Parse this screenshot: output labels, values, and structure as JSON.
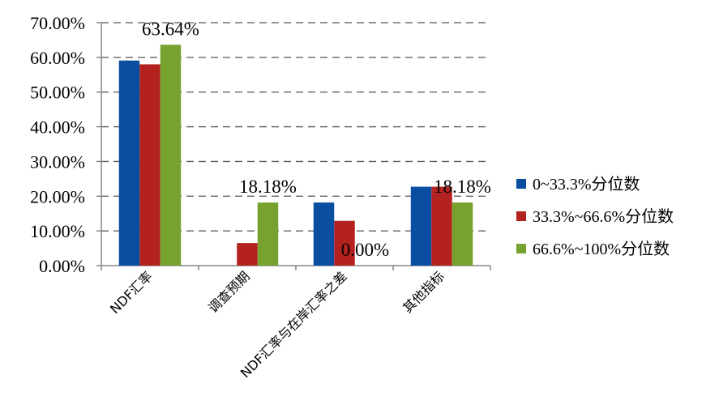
{
  "chart_data": {
    "type": "bar",
    "categories": [
      "NDF汇率",
      "调查预期",
      "NDF汇率与在岸汇率之差",
      "其他指标"
    ],
    "series": [
      {
        "name": "0~33.3%分位数",
        "color": "#0a4ea2",
        "values": [
          59.09,
          0,
          18.18,
          22.73
        ]
      },
      {
        "name": "33.3%~66.6%分位数",
        "color": "#b3221f",
        "values": [
          58.0,
          6.5,
          12.9,
          22.73
        ]
      },
      {
        "name": "66.6%~100%分位数",
        "color": "#78a22f",
        "values": [
          63.64,
          18.18,
          0.0,
          18.18
        ]
      }
    ],
    "data_labels": [
      {
        "text": "63.64%",
        "category": 0,
        "series": 2
      },
      {
        "text": "18.18%",
        "category": 1,
        "series": 2
      },
      {
        "text": "0.00%",
        "category": 2,
        "series": 2
      },
      {
        "text": "18.18%",
        "category": 3,
        "series": 2
      }
    ],
    "yticks": [
      "0.00%",
      "10.00%",
      "20.00%",
      "30.00%",
      "40.00%",
      "50.00%",
      "60.00%",
      "70.00%"
    ],
    "ylim": [
      0,
      70
    ],
    "grid": true,
    "legend_position": "right",
    "title": "",
    "xlabel": "",
    "ylabel": ""
  }
}
